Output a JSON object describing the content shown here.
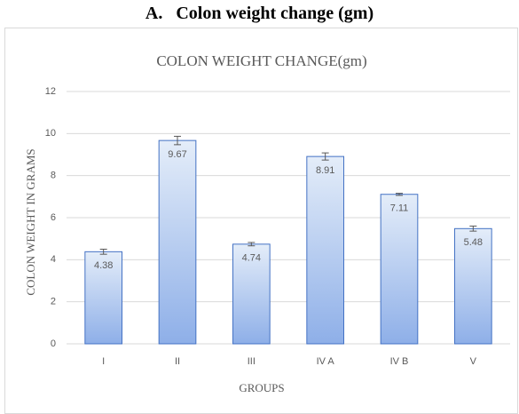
{
  "heading": "A.   Colon weight change (gm)",
  "chart_data": {
    "type": "bar",
    "title": "COLON WEIGHT  CHANGE(gm)",
    "x_label": "GROUPS",
    "y_label": "COLON WEIGHT IN GRAMS",
    "categories": [
      "I",
      "II",
      "III",
      "IV A",
      "IV B",
      "V"
    ],
    "values": [
      4.38,
      9.67,
      4.74,
      8.91,
      7.11,
      5.48
    ],
    "errors": [
      0.12,
      0.2,
      0.08,
      0.17,
      0.05,
      0.12
    ],
    "color": "#4472c4",
    "ylim": [
      0,
      12
    ],
    "yticks": [
      0,
      2,
      4,
      6,
      8,
      10,
      12
    ],
    "grid": true
  }
}
